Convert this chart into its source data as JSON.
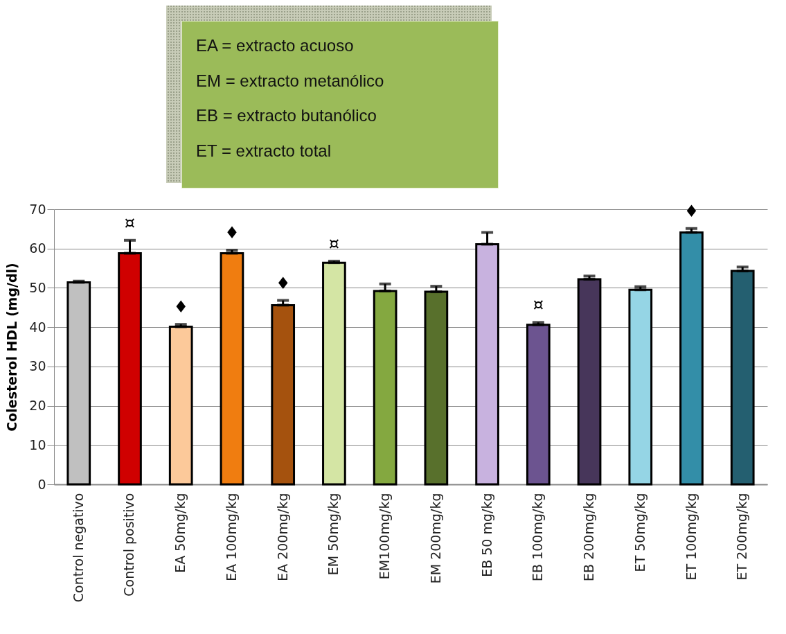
{
  "chart_data": {
    "type": "bar",
    "ylabel": "Colesterol HDL  (mg/dl)",
    "categories": [
      "Control negativo",
      "Control positivo",
      "EA 50mg/kg",
      "EA 100mg/kg",
      "EA 200mg/kg",
      "EM 50mg/kg",
      "EM100mg/kg",
      "EM 200mg/kg",
      "EB 50 mg/kg",
      "EB 100mg/kg",
      "EB 200mg/kg",
      "ET 50mg/kg",
      "ET 100mg/kg",
      "ET 200mg/kg"
    ],
    "values": [
      51.4,
      58.8,
      40.1,
      58.8,
      45.6,
      56.4,
      49.2,
      49.0,
      61.1,
      40.6,
      52.2,
      49.5,
      64.1,
      54.3
    ],
    "errors": [
      [
        51.4,
        51.7
      ],
      [
        58.8,
        62.1
      ],
      [
        40.1,
        40.7
      ],
      [
        58.8,
        59.6
      ],
      [
        45.6,
        46.8
      ],
      [
        56.4,
        56.8
      ],
      [
        49.2,
        51.0
      ],
      [
        49.0,
        50.4
      ],
      [
        61.1,
        64.1
      ],
      [
        40.6,
        41.2
      ],
      [
        52.2,
        53.0
      ],
      [
        49.5,
        50.3
      ],
      [
        64.1,
        65.1
      ],
      [
        54.3,
        55.3
      ]
    ],
    "colors": [
      "#c0c0c0",
      "#d00000",
      "#fcc99a",
      "#f07d10",
      "#a5520e",
      "#d4e5a4",
      "#84a840",
      "#58702c",
      "#c8b2df",
      "#6c5490",
      "#47365a",
      "#95d5e5",
      "#338ea8",
      "#245f70"
    ],
    "ylim": [
      0,
      70
    ],
    "yticks": [
      0,
      10,
      20,
      30,
      40,
      50,
      60,
      70
    ],
    "grid": "y",
    "legend": false,
    "annotations": [
      "EA = extracto acuoso",
      "EM = extracto metanólico",
      "EB = extracto butanólico",
      "ET = extracto total",
      {
        "text": "¤",
        "x": "Control positivo",
        "y": 58.8
      },
      {
        "text": "♦",
        "x": "EA 50mg/kg",
        "y": 40.1
      },
      {
        "text": "♦",
        "x": "EA 100mg/kg",
        "y": 58.8
      },
      {
        "text": "♦",
        "x": "EA 200mg/kg",
        "y": 45.6
      },
      {
        "text": "¤",
        "x": "EM 50mg/kg",
        "y": 56.4
      },
      {
        "text": "¤",
        "x": "EB 100mg/kg",
        "y": 40.6
      },
      {
        "text": "♦",
        "x": "ET 100mg/kg",
        "y": 64.1
      }
    ]
  }
}
